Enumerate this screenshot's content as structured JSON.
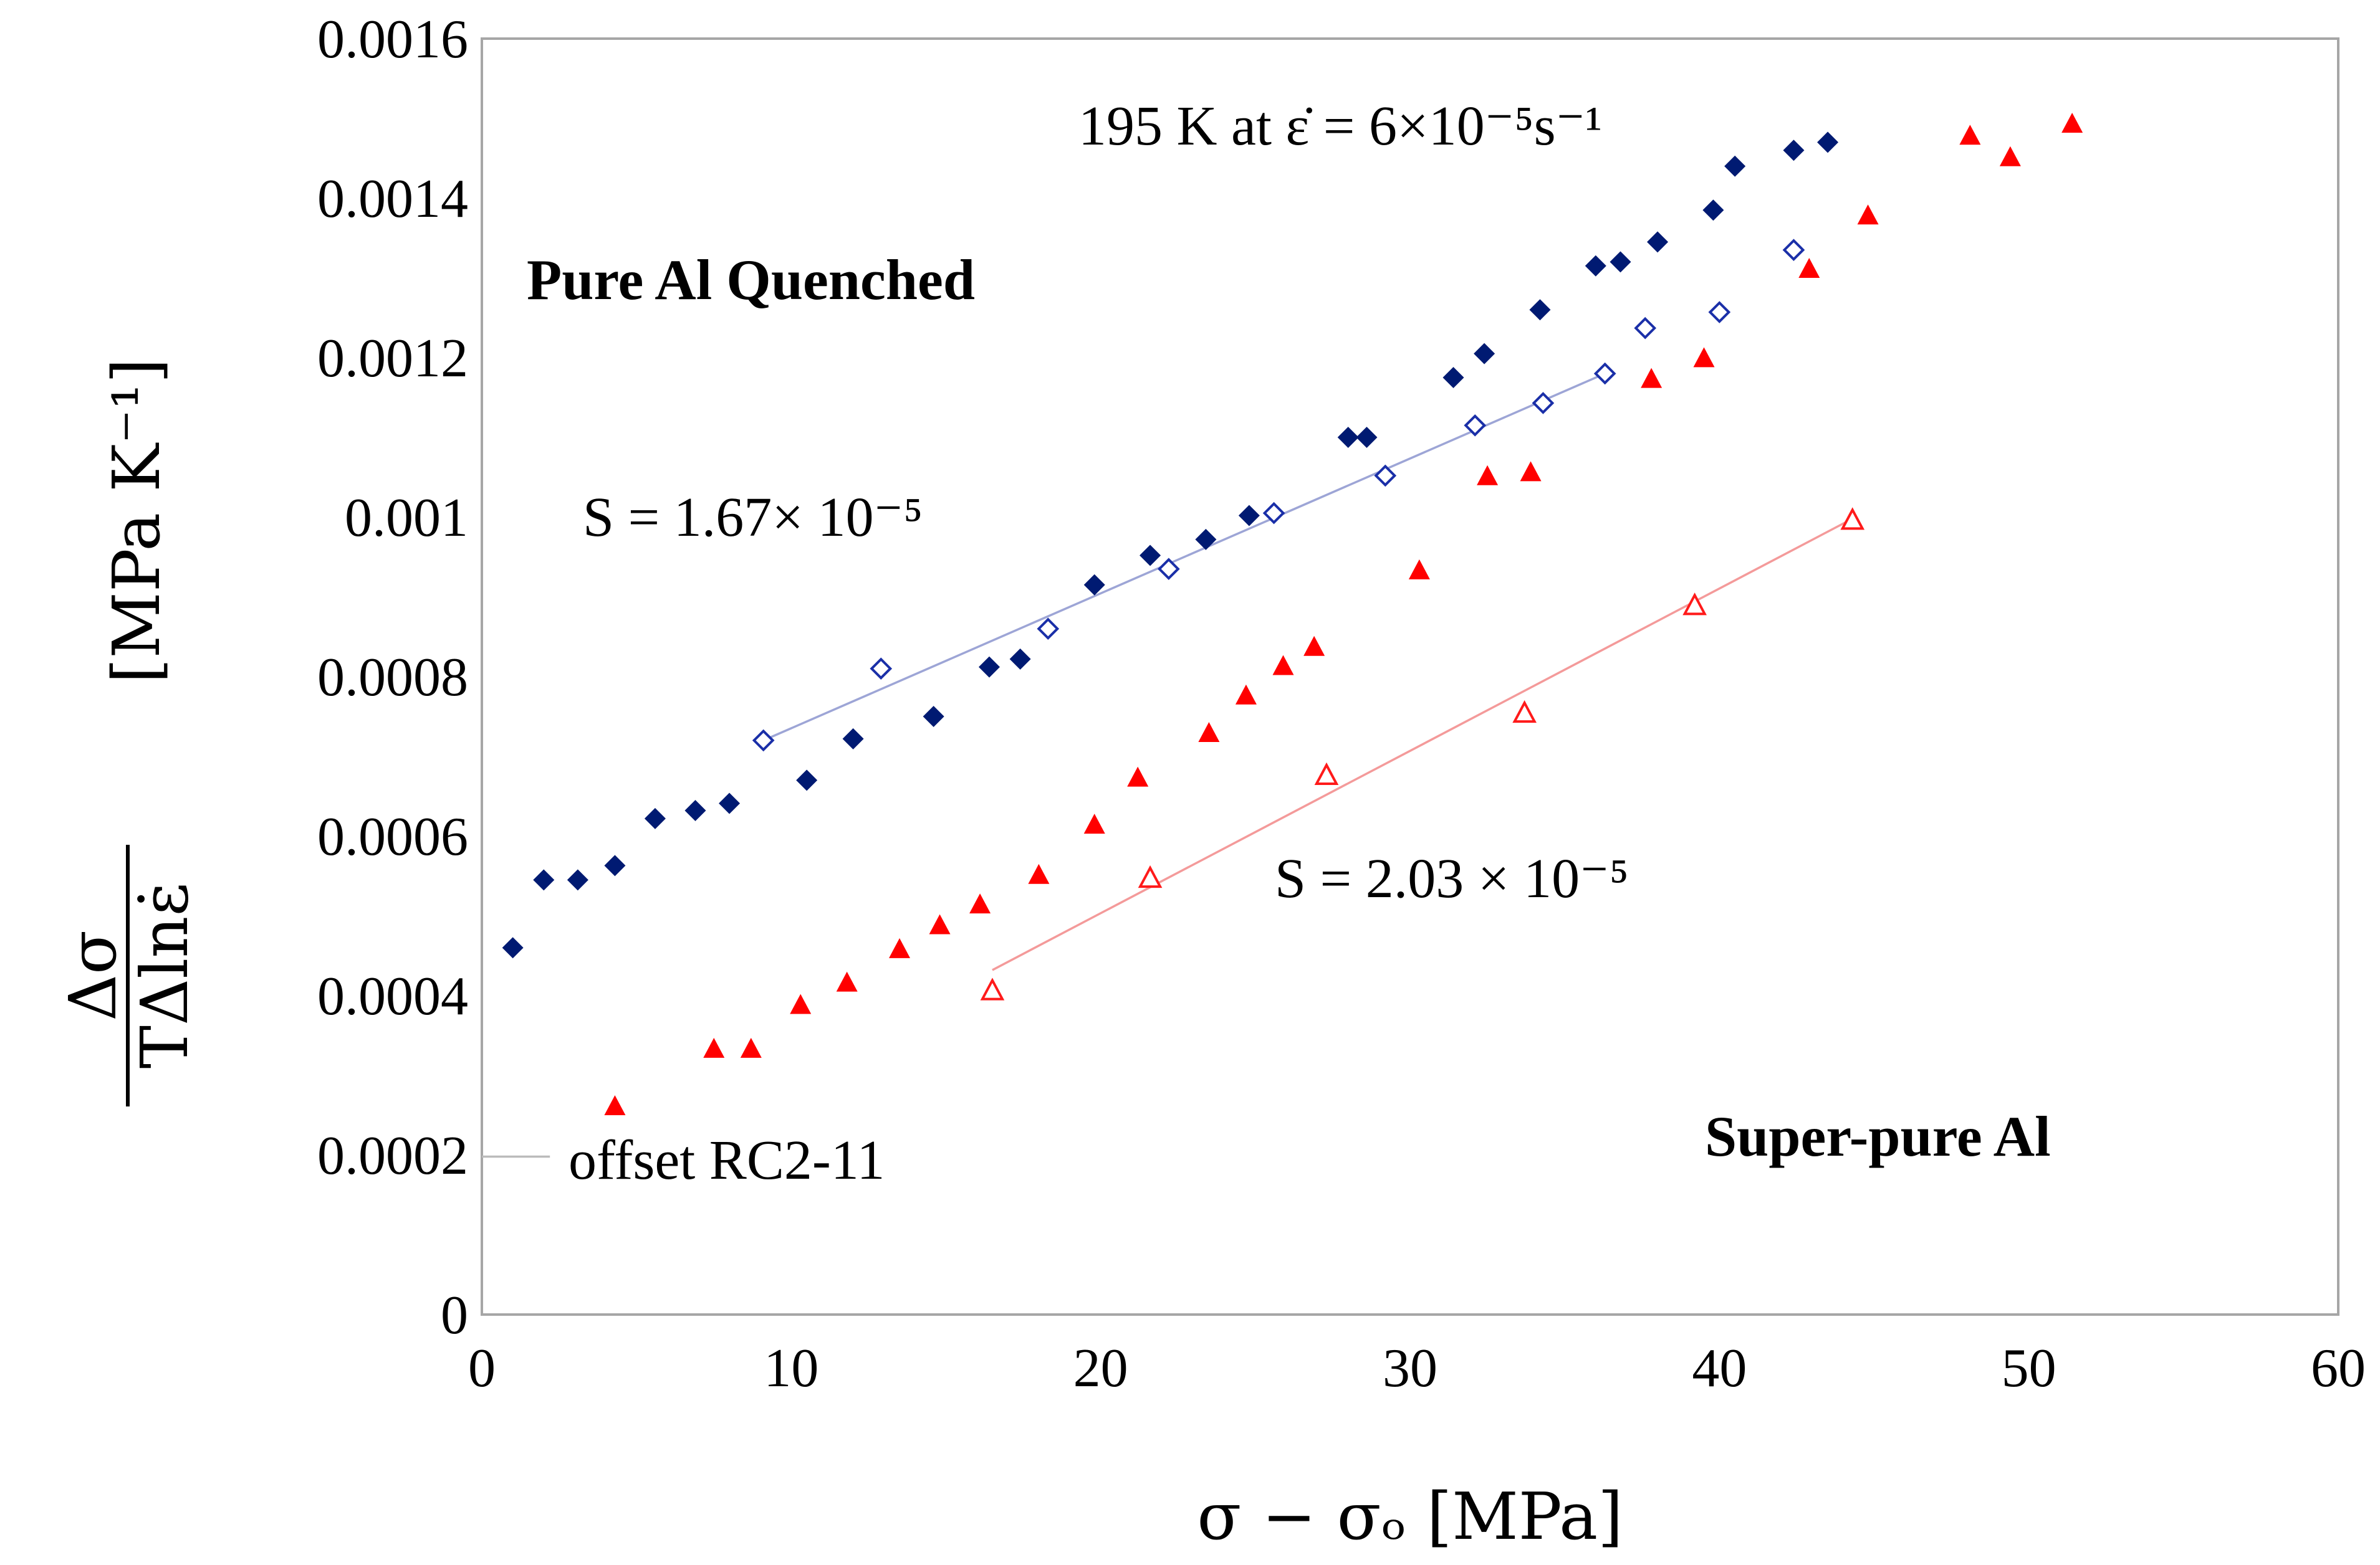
{
  "chart_data": {
    "type": "scatter",
    "title": "",
    "xlabel": "σ − σₒ [MPa]",
    "ylabel": {
      "numerator": "Δσ",
      "denominator": "TΔlnε̇",
      "units": "[MPa K⁻¹]"
    },
    "xlim": [
      0,
      60
    ],
    "ylim": [
      0,
      0.0016
    ],
    "x_ticks": [
      "0",
      "10",
      "20",
      "30",
      "40",
      "50",
      "60"
    ],
    "y_ticks": [
      "0",
      "0.0002",
      "0.0004",
      "0.0006",
      "0.0008",
      "0.001",
      "0.0012",
      "0.0014",
      "0.0016"
    ],
    "grid": false,
    "legend": "none",
    "annotations": {
      "pure_label": "Pure Al Quenched",
      "super_label": "Super-pure Al",
      "temp_label": "195 K at ε̇ = 6×10⁻⁵s⁻¹",
      "slope_pure": "S = 1.67× 10⁻⁵",
      "slope_super": "S = 2.03 × 10⁻⁵",
      "offset_label": "offset RC2-11"
    },
    "series": [
      {
        "marker": "filled-diamond",
        "color": "#001a72",
        "x": [
          1.0,
          2.0,
          3.1,
          4.3,
          5.6,
          6.9,
          8.0,
          10.5,
          12.0,
          14.6,
          16.4,
          17.4,
          19.8,
          21.6,
          23.4,
          24.8,
          28.0,
          28.6,
          31.4,
          32.4,
          34.2,
          36.0,
          36.8,
          38.0,
          39.8,
          40.5,
          42.4,
          43.5
        ],
        "y": [
          0.00046,
          0.000545,
          0.000545,
          0.000563,
          0.000622,
          0.000632,
          0.000641,
          0.00067,
          0.000722,
          0.00075,
          0.000812,
          0.000822,
          0.000915,
          0.000952,
          0.000972,
          0.001002,
          0.0011,
          0.0011,
          0.001175,
          0.001205,
          0.00126,
          0.001315,
          0.00132,
          0.001345,
          0.001385,
          0.00144,
          0.00146,
          0.00147
        ]
      },
      {
        "marker": "open-diamond",
        "color": "#1a2fa8",
        "x": [
          9.1,
          12.9,
          18.3,
          22.2,
          25.6,
          29.2,
          32.1,
          34.3,
          36.3,
          37.6,
          40.0,
          42.4
        ],
        "y": [
          0.00072,
          0.00081,
          0.00086,
          0.000935,
          0.001005,
          0.001052,
          0.001115,
          0.001143,
          0.00118,
          0.001237,
          0.001257,
          0.001335
        ]
      },
      {
        "marker": "filled-triangle",
        "color": "#ff0000",
        "x": [
          4.3,
          7.5,
          8.7,
          10.3,
          11.8,
          13.5,
          14.8,
          16.1,
          18.0,
          19.8,
          21.2,
          23.5,
          24.7,
          25.9,
          26.9,
          30.3,
          32.5,
          33.9,
          37.8,
          39.5,
          42.9,
          44.8,
          48.1,
          49.4,
          51.4
        ],
        "y": [
          0.00026,
          0.000332,
          0.000332,
          0.000387,
          0.000415,
          0.000457,
          0.000487,
          0.000513,
          0.00055,
          0.000613,
          0.000672,
          0.000728,
          0.000775,
          0.000812,
          0.000836,
          0.000932,
          0.00105,
          0.001055,
          0.001172,
          0.001198,
          0.00131,
          0.001377,
          0.001477,
          0.00145,
          0.001492
        ]
      },
      {
        "marker": "open-triangle",
        "color": "#ff1a1a",
        "x": [
          16.5,
          21.6,
          27.3,
          33.7,
          39.2,
          44.3
        ],
        "y": [
          0.000405,
          0.000546,
          0.000675,
          0.000753,
          0.000888,
          0.000995
        ]
      }
    ],
    "fit_lines": [
      {
        "color": "#9da5d6",
        "x": [
          9.1,
          36.3
        ],
        "y": [
          0.00072,
          0.00118
        ]
      },
      {
        "color": "#f49a9a",
        "x": [
          16.5,
          44.3
        ],
        "y": [
          0.000432,
          0.000998
        ]
      },
      {
        "color": "#bbbbbb",
        "x": [
          0.0,
          2.2
        ],
        "y": [
          0.000198,
          0.000198
        ]
      }
    ]
  }
}
